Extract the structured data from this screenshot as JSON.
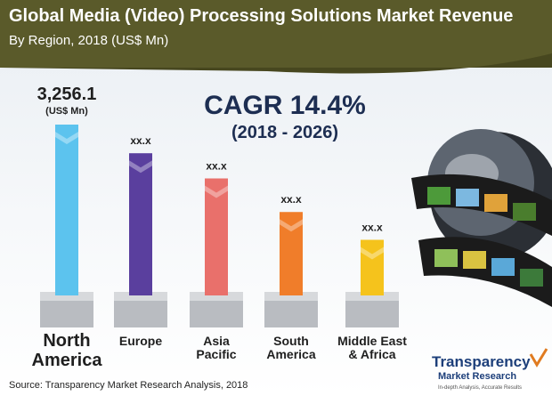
{
  "title": "Global Media (Video) Processing Solutions Market Revenue",
  "subtitle": "By Region, 2018 (US$ Mn)",
  "chart_data": {
    "type": "bar",
    "categories": [
      "North America",
      "Europe",
      "Asia Pacific",
      "South America",
      "Middle East & Africa"
    ],
    "values": [
      3256.1,
      2710,
      2230,
      1590,
      1060
    ],
    "value_labels": [
      "3,256.1",
      "xx.x",
      "xx.x",
      "xx.x",
      "xx.x"
    ],
    "value_unit": "(US$ Mn)",
    "colors": [
      "#5cc3ee",
      "#5a3f9e",
      "#e9706b",
      "#f07d2a",
      "#f5c31c"
    ]
  },
  "cagr": "CAGR 14.4%",
  "cagr_period": "(2018 - 2026)",
  "source": "Source: Transparency Market Research Analysis, 2018",
  "logo": {
    "line1": "Transparency",
    "line2": "Market Research",
    "tagline": "In-depth Analysis, Accurate Results"
  }
}
